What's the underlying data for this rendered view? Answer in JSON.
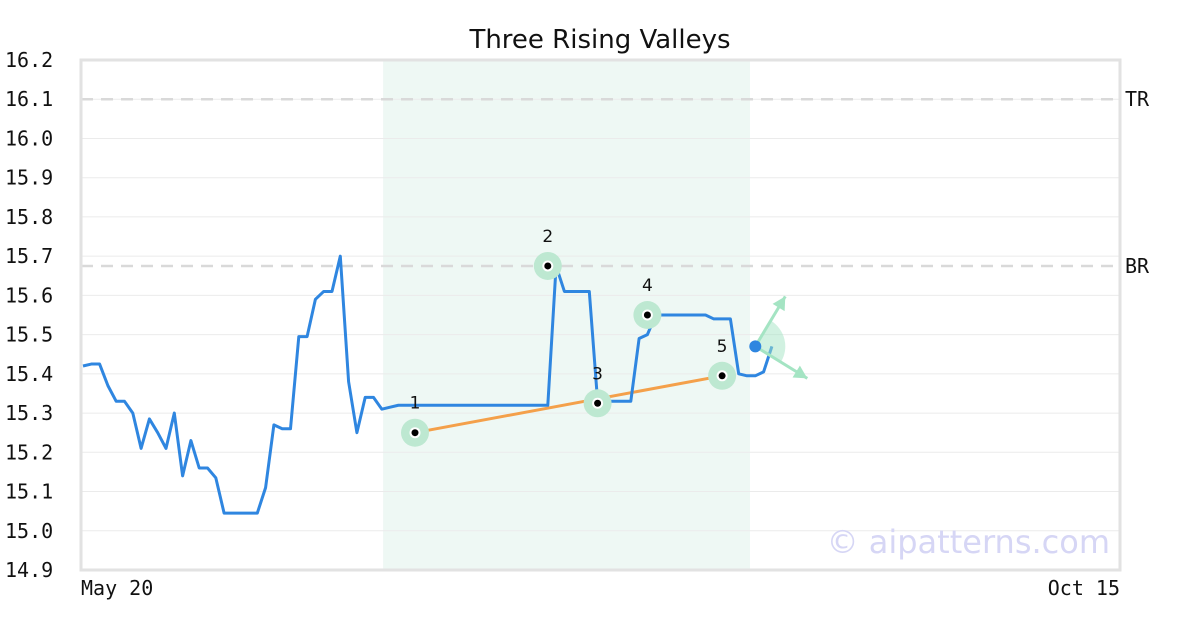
{
  "chart_data": {
    "type": "line",
    "title": "Three Rising Valleys",
    "ylim": [
      14.9,
      16.2
    ],
    "y_ticks": [
      "16.2",
      "16.1",
      "16.0",
      "15.9",
      "15.8",
      "15.7",
      "15.6",
      "15.5",
      "15.4",
      "15.3",
      "15.2",
      "15.1",
      "15.0",
      "14.9"
    ],
    "x_tick_labels": [
      "May 20",
      "Oct 15"
    ],
    "grid": true,
    "reference_lines": [
      {
        "label": "TR",
        "y": 16.1
      },
      {
        "label": "BR",
        "y": 15.675
      }
    ],
    "highlight_index_range": [
      37,
      80
    ],
    "series": [
      {
        "values": [
          15.42,
          15.425,
          15.425,
          15.37,
          15.33,
          15.33,
          15.3,
          15.21,
          15.285,
          15.25,
          15.21,
          15.3,
          15.14,
          15.23,
          15.16,
          15.16,
          15.135,
          15.045,
          15.045,
          15.045,
          15.045,
          15.045,
          15.11,
          15.27,
          15.26,
          15.26,
          15.495,
          15.495,
          15.59,
          15.61,
          15.61,
          15.7,
          15.38,
          15.25,
          15.34,
          15.34,
          15.31,
          15.315,
          15.32,
          15.32,
          15.32,
          15.32,
          15.32,
          15.32,
          15.32,
          15.32,
          15.32,
          15.32,
          15.32,
          15.32,
          15.32,
          15.32,
          15.32,
          15.32,
          15.32,
          15.32,
          15.32,
          15.675,
          15.61,
          15.61,
          15.61,
          15.61,
          15.33,
          15.33,
          15.33,
          15.33,
          15.33,
          15.49,
          15.5,
          15.55,
          15.55,
          15.55,
          15.55,
          15.55,
          15.55,
          15.55,
          15.54,
          15.54,
          15.54,
          15.4,
          15.395,
          15.395,
          15.405,
          15.47
        ]
      }
    ],
    "pattern_points": [
      {
        "label": "1",
        "index": 40,
        "y": 15.25
      },
      {
        "label": "2",
        "index": 56,
        "y": 15.675
      },
      {
        "label": "3",
        "index": 62,
        "y": 15.325
      },
      {
        "label": "4",
        "index": 68,
        "y": 15.55
      },
      {
        "label": "5",
        "index": 77,
        "y": 15.395
      }
    ],
    "trendline": {
      "from_point": "1",
      "to_point": "5"
    },
    "last_point": {
      "index": 81,
      "y": 15.47
    },
    "colors": {
      "line": "#2f86e0",
      "trend": "#f4a04a",
      "marker_halo": "#bde8d1",
      "highlight": "#eef8f4",
      "arrows": "#a4e4c3",
      "ref_line": "#d9d9d9",
      "grid": "#ebebeb",
      "frame": "#e2e2e2"
    }
  },
  "watermark": "© aipatterns.com"
}
